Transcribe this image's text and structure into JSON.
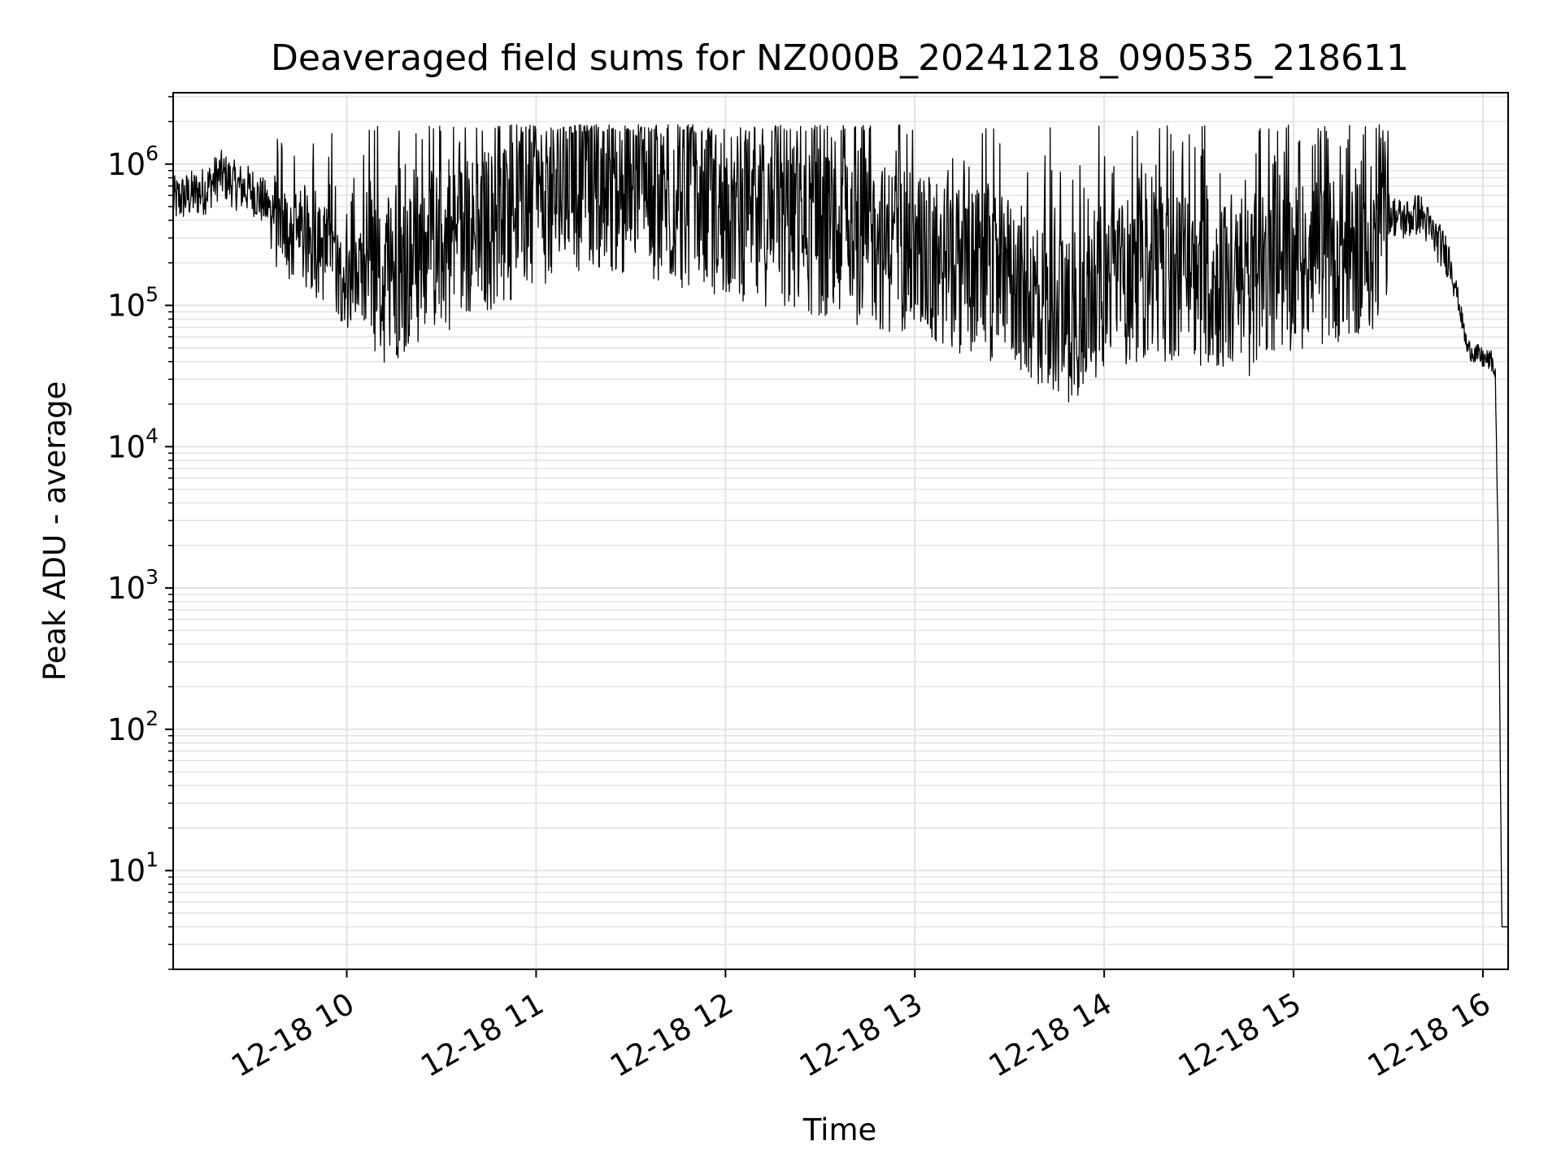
{
  "chart_data": {
    "type": "line",
    "title": "Deaveraged field sums for NZ000B_20241218_090535_218611",
    "xlabel": "Time",
    "ylabel": "Peak ADU - average",
    "yscale": "log",
    "ylim": [
      2,
      3200000
    ],
    "xlim": [
      "12-18 09:05",
      "12-18 16:08"
    ],
    "grid": true,
    "line_color": "#000000",
    "x_ticks": [
      "12-18 10",
      "12-18 11",
      "12-18 12",
      "12-18 13",
      "12-18 14",
      "12-18 15",
      "12-18 16"
    ],
    "y_ticks": [
      {
        "base": "10",
        "exp": "1",
        "value": 10
      },
      {
        "base": "10",
        "exp": "2",
        "value": 100
      },
      {
        "base": "10",
        "exp": "3",
        "value": 1000
      },
      {
        "base": "10",
        "exp": "4",
        "value": 10000
      },
      {
        "base": "10",
        "exp": "5",
        "value": 100000
      },
      {
        "base": "10",
        "exp": "6",
        "value": 1000000
      }
    ],
    "series": [
      {
        "points": [
          [
            "12-18 09:05",
            550000
          ],
          [
            "12-18 09:10",
            600000
          ],
          [
            "12-18 09:15",
            650000
          ],
          [
            "12-18 09:20",
            850000
          ],
          [
            "12-18 09:25",
            700000
          ],
          [
            "12-18 09:30",
            650000
          ],
          [
            "12-18 09:35",
            500000
          ],
          [
            "12-18 09:40",
            320000
          ],
          [
            "12-18 09:45",
            300000
          ],
          [
            "12-18 09:50",
            250000
          ],
          [
            "12-18 09:55",
            220000
          ],
          [
            "12-18 10:00",
            150000
          ],
          [
            "12-18 10:10",
            140000
          ],
          [
            "12-18 10:20",
            180000
          ],
          [
            "12-18 10:30",
            250000
          ],
          [
            "12-18 10:40",
            300000
          ],
          [
            "12-18 10:50",
            400000
          ],
          [
            "12-18 11:00",
            500000
          ],
          [
            "12-18 11:15",
            700000
          ],
          [
            "12-18 11:30",
            650000
          ],
          [
            "12-18 11:45",
            500000
          ],
          [
            "12-18 12:00",
            450000
          ],
          [
            "12-18 12:15",
            380000
          ],
          [
            "12-18 12:30",
            320000
          ],
          [
            "12-18 12:45",
            280000
          ],
          [
            "12-18 13:00",
            220000
          ],
          [
            "12-18 13:15",
            180000
          ],
          [
            "12-18 13:30",
            150000
          ],
          [
            "12-18 13:40",
            100000
          ],
          [
            "12-18 13:50",
            80000
          ],
          [
            "12-18 14:00",
            140000
          ],
          [
            "12-18 14:15",
            160000
          ],
          [
            "12-18 14:30",
            150000
          ],
          [
            "12-18 14:45",
            120000
          ],
          [
            "12-18 14:55",
            180000
          ],
          [
            "12-18 15:05",
            200000
          ],
          [
            "12-18 15:15",
            220000
          ],
          [
            "12-18 15:25",
            250000
          ],
          [
            "12-18 15:30",
            450000
          ],
          [
            "12-18 15:35",
            400000
          ],
          [
            "12-18 15:40",
            450000
          ],
          [
            "12-18 15:45",
            300000
          ],
          [
            "12-18 15:50",
            200000
          ],
          [
            "12-18 15:55",
            50000
          ],
          [
            "12-18 16:00",
            42000
          ],
          [
            "12-18 16:03",
            40000
          ],
          [
            "12-18 16:04",
            30000
          ],
          [
            "12-18 16:05",
            1000
          ],
          [
            "12-18 16:06",
            4
          ],
          [
            "12-18 16:08",
            4
          ]
        ]
      }
    ]
  }
}
